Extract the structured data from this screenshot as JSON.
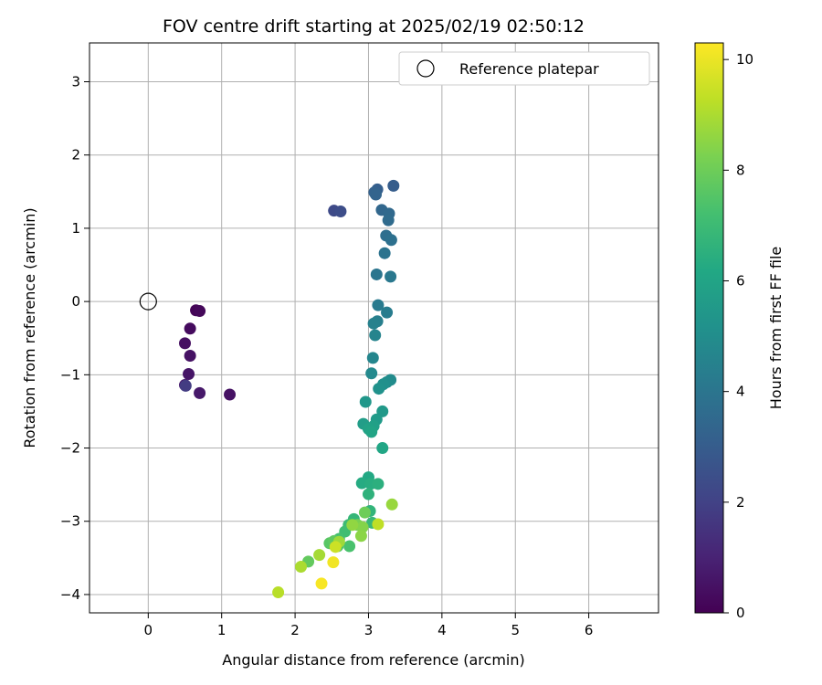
{
  "chart_data": {
    "type": "scatter",
    "title": "FOV centre drift starting at 2025/02/19 02:50:12",
    "xlabel": "Angular distance from reference (arcmin)",
    "ylabel": "Rotation from reference (arcmin)",
    "xlim": [
      -0.8,
      6.95
    ],
    "ylim": [
      -4.25,
      3.53
    ],
    "xticks": [
      0,
      1,
      2,
      3,
      4,
      5,
      6
    ],
    "yticks": [
      -4,
      -3,
      -2,
      -1,
      0,
      1,
      2,
      3
    ],
    "grid": true,
    "legend_position": "top-right",
    "legend": [
      {
        "label": "Reference platepar",
        "marker": "open-circle"
      }
    ],
    "reference_point": {
      "x": 0,
      "y": 0
    },
    "colorbar": {
      "label": "Hours from first FF file",
      "range": [
        0,
        10.3
      ],
      "ticks": [
        0,
        2,
        4,
        6,
        8,
        10
      ],
      "colormap": "viridis"
    },
    "points": [
      {
        "x": 0.65,
        "y": -0.12,
        "t": 0.1
      },
      {
        "x": 0.7,
        "y": -0.13,
        "t": 0.2
      },
      {
        "x": 0.57,
        "y": -0.37,
        "t": 0.3
      },
      {
        "x": 0.5,
        "y": -0.57,
        "t": 0.4
      },
      {
        "x": 0.57,
        "y": -0.74,
        "t": 0.5
      },
      {
        "x": 0.55,
        "y": -0.99,
        "t": 0.6
      },
      {
        "x": 0.5,
        "y": -1.14,
        "t": 0.8
      },
      {
        "x": 0.7,
        "y": -1.25,
        "t": 0.7
      },
      {
        "x": 1.11,
        "y": -1.27,
        "t": 0.5
      },
      {
        "x": 0.51,
        "y": -1.15,
        "t": 1.8
      },
      {
        "x": 2.53,
        "y": 1.24,
        "t": 2.3
      },
      {
        "x": 2.62,
        "y": 1.23,
        "t": 2.4
      },
      {
        "x": 3.34,
        "y": 1.58,
        "t": 3.0
      },
      {
        "x": 3.12,
        "y": 1.53,
        "t": 3.1
      },
      {
        "x": 3.08,
        "y": 1.49,
        "t": 3.2
      },
      {
        "x": 3.1,
        "y": 1.46,
        "t": 3.3
      },
      {
        "x": 3.18,
        "y": 1.25,
        "t": 3.4
      },
      {
        "x": 3.28,
        "y": 1.2,
        "t": 3.5
      },
      {
        "x": 3.27,
        "y": 1.11,
        "t": 3.6
      },
      {
        "x": 3.24,
        "y": 0.9,
        "t": 3.7
      },
      {
        "x": 3.31,
        "y": 0.84,
        "t": 3.8
      },
      {
        "x": 3.22,
        "y": 0.66,
        "t": 3.9
      },
      {
        "x": 3.11,
        "y": 0.37,
        "t": 4.0
      },
      {
        "x": 3.3,
        "y": 0.34,
        "t": 4.1
      },
      {
        "x": 3.13,
        "y": -0.05,
        "t": 4.2
      },
      {
        "x": 3.25,
        "y": -0.15,
        "t": 4.3
      },
      {
        "x": 3.12,
        "y": -0.27,
        "t": 4.4
      },
      {
        "x": 3.07,
        "y": -0.3,
        "t": 4.5
      },
      {
        "x": 3.09,
        "y": -0.46,
        "t": 4.6
      },
      {
        "x": 3.06,
        "y": -0.77,
        "t": 4.7
      },
      {
        "x": 3.04,
        "y": -0.98,
        "t": 4.8
      },
      {
        "x": 3.3,
        "y": -1.07,
        "t": 4.9
      },
      {
        "x": 3.25,
        "y": -1.1,
        "t": 5.0
      },
      {
        "x": 3.2,
        "y": -1.13,
        "t": 5.1
      },
      {
        "x": 3.14,
        "y": -1.19,
        "t": 5.2
      },
      {
        "x": 2.96,
        "y": -1.37,
        "t": 5.4
      },
      {
        "x": 3.19,
        "y": -1.5,
        "t": 5.5
      },
      {
        "x": 3.11,
        "y": -1.61,
        "t": 5.6
      },
      {
        "x": 2.93,
        "y": -1.67,
        "t": 5.7
      },
      {
        "x": 3.07,
        "y": -1.7,
        "t": 5.8
      },
      {
        "x": 3.0,
        "y": -1.74,
        "t": 5.9
      },
      {
        "x": 3.04,
        "y": -1.78,
        "t": 6.0
      },
      {
        "x": 3.19,
        "y": -2.0,
        "t": 6.1
      },
      {
        "x": 3.0,
        "y": -2.4,
        "t": 6.2
      },
      {
        "x": 2.91,
        "y": -2.48,
        "t": 6.3
      },
      {
        "x": 3.03,
        "y": -2.49,
        "t": 6.4
      },
      {
        "x": 3.13,
        "y": -2.49,
        "t": 6.5
      },
      {
        "x": 3.0,
        "y": -2.63,
        "t": 6.6
      },
      {
        "x": 3.02,
        "y": -2.86,
        "t": 6.7
      },
      {
        "x": 2.8,
        "y": -2.97,
        "t": 6.8
      },
      {
        "x": 3.05,
        "y": -3.02,
        "t": 6.9
      },
      {
        "x": 2.73,
        "y": -3.05,
        "t": 7.0
      },
      {
        "x": 2.68,
        "y": -3.14,
        "t": 7.1
      },
      {
        "x": 2.6,
        "y": -3.24,
        "t": 7.2
      },
      {
        "x": 2.74,
        "y": -3.34,
        "t": 7.3
      },
      {
        "x": 2.58,
        "y": -3.34,
        "t": 7.4
      },
      {
        "x": 2.47,
        "y": -3.3,
        "t": 7.6
      },
      {
        "x": 2.53,
        "y": -3.27,
        "t": 7.7
      },
      {
        "x": 2.18,
        "y": -3.55,
        "t": 7.8
      },
      {
        "x": 2.95,
        "y": -2.88,
        "t": 8.0
      },
      {
        "x": 2.85,
        "y": -3.05,
        "t": 8.2
      },
      {
        "x": 2.92,
        "y": -3.08,
        "t": 8.4
      },
      {
        "x": 2.9,
        "y": -3.2,
        "t": 8.5
      },
      {
        "x": 2.78,
        "y": -3.05,
        "t": 8.6
      },
      {
        "x": 3.32,
        "y": -2.77,
        "t": 8.7
      },
      {
        "x": 2.6,
        "y": -3.28,
        "t": 8.8
      },
      {
        "x": 2.33,
        "y": -3.46,
        "t": 8.9
      },
      {
        "x": 2.08,
        "y": -3.62,
        "t": 9.0
      },
      {
        "x": 1.77,
        "y": -3.97,
        "t": 9.2
      },
      {
        "x": 3.13,
        "y": -3.04,
        "t": 9.3
      },
      {
        "x": 2.55,
        "y": -3.35,
        "t": 9.5
      },
      {
        "x": 2.52,
        "y": -3.56,
        "t": 10.1
      },
      {
        "x": 2.36,
        "y": -3.85,
        "t": 10.2
      }
    ]
  }
}
